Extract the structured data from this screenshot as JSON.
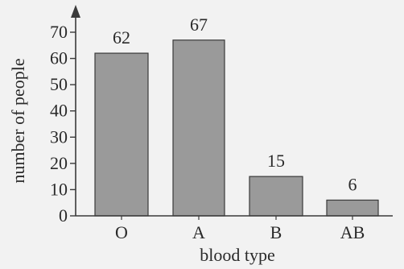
{
  "chart_data": {
    "type": "bar",
    "categories": [
      "O",
      "A",
      "B",
      "AB"
    ],
    "values": [
      62,
      67,
      15,
      6
    ],
    "data_labels": [
      "62",
      "67",
      "15",
      "6"
    ],
    "title": "",
    "xlabel": "blood type",
    "ylabel": "number of people",
    "ylim": [
      0,
      70
    ],
    "yticks": [
      0,
      10,
      20,
      30,
      40,
      50,
      60,
      70
    ],
    "ytick_labels": [
      "0",
      "10",
      "20",
      "30",
      "40",
      "50",
      "60",
      "70"
    ],
    "grid": false,
    "legend": "none"
  },
  "colors": {
    "bar": "#9a9a9a",
    "bar_stroke": "#3a3a3a",
    "axis": "#3a3a3a",
    "background": "#f2f2f2"
  }
}
